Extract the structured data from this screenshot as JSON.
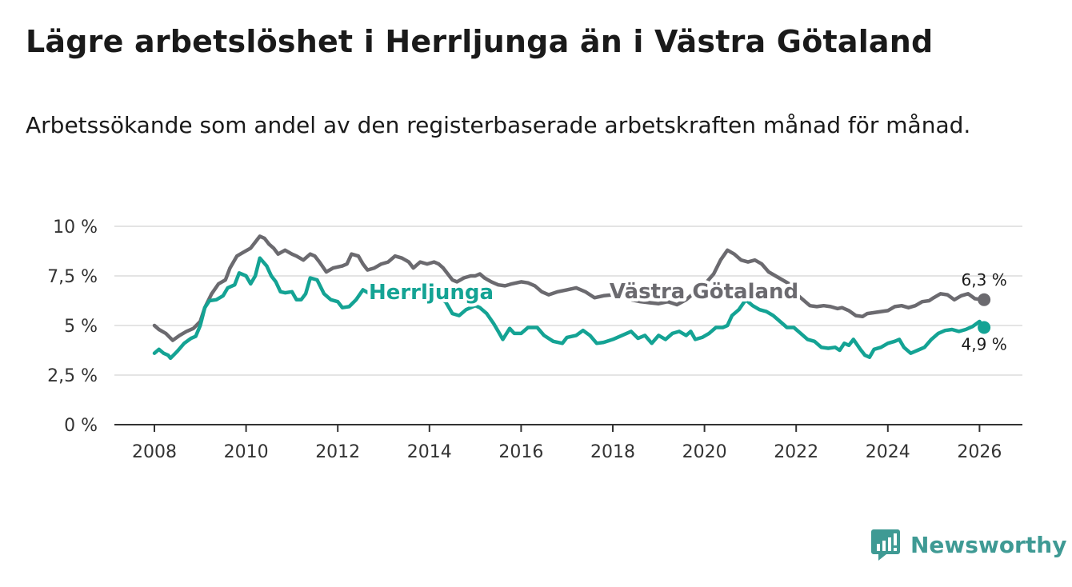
{
  "title": "Lägre arbetslöshet i Herrljunga än i Västra Götaland",
  "subtitle": "Arbetssökande som andel av den registerbaserade arbetskraften månad för månad.",
  "brand": {
    "name": "Newsworthy",
    "icon": "newsworthy-logo-icon",
    "color": "#3f9a94"
  },
  "chart_data": {
    "type": "line",
    "title": "Lägre arbetslöshet i Herrljunga än i Västra Götaland",
    "xlabel": "",
    "ylabel": "",
    "xlim": [
      2007.7,
      2027.0
    ],
    "ylim": [
      0,
      10
    ],
    "yticks": [
      0,
      2.5,
      5,
      7.5,
      10
    ],
    "ytick_labels": [
      "0 %",
      "2,5 %",
      "5 %",
      "7,5 %",
      "10 %"
    ],
    "xticks": [
      2008,
      2010,
      2012,
      2014,
      2016,
      2018,
      2020,
      2022,
      2024,
      2026
    ],
    "xtick_labels": [
      "2008",
      "2010",
      "2012",
      "2014",
      "2016",
      "2018",
      "2020",
      "2022",
      "2024",
      "2026"
    ],
    "grid": true,
    "series": [
      {
        "name": "Västra Götaland",
        "label": "Västra Götaland",
        "color": "#6b6a6f",
        "end_label": "6,3 %",
        "points": [
          [
            2008.0,
            5.0
          ],
          [
            2008.1,
            4.8
          ],
          [
            2008.25,
            4.6
          ],
          [
            2008.4,
            4.25
          ],
          [
            2008.55,
            4.5
          ],
          [
            2008.7,
            4.7
          ],
          [
            2008.85,
            4.85
          ],
          [
            2009.0,
            5.2
          ],
          [
            2009.1,
            5.9
          ],
          [
            2009.25,
            6.6
          ],
          [
            2009.4,
            7.1
          ],
          [
            2009.55,
            7.3
          ],
          [
            2009.65,
            7.9
          ],
          [
            2009.8,
            8.5
          ],
          [
            2009.95,
            8.7
          ],
          [
            2010.1,
            8.9
          ],
          [
            2010.2,
            9.2
          ],
          [
            2010.3,
            9.5
          ],
          [
            2010.4,
            9.4
          ],
          [
            2010.5,
            9.1
          ],
          [
            2010.6,
            8.9
          ],
          [
            2010.7,
            8.6
          ],
          [
            2010.85,
            8.8
          ],
          [
            2011.0,
            8.6
          ],
          [
            2011.1,
            8.5
          ],
          [
            2011.25,
            8.3
          ],
          [
            2011.4,
            8.6
          ],
          [
            2011.5,
            8.5
          ],
          [
            2011.6,
            8.2
          ],
          [
            2011.75,
            7.7
          ],
          [
            2011.9,
            7.9
          ],
          [
            2012.1,
            8.0
          ],
          [
            2012.2,
            8.1
          ],
          [
            2012.3,
            8.6
          ],
          [
            2012.45,
            8.5
          ],
          [
            2012.55,
            8.1
          ],
          [
            2012.65,
            7.8
          ],
          [
            2012.8,
            7.9
          ],
          [
            2012.95,
            8.1
          ],
          [
            2013.1,
            8.2
          ],
          [
            2013.25,
            8.5
          ],
          [
            2013.4,
            8.4
          ],
          [
            2013.55,
            8.2
          ],
          [
            2013.65,
            7.9
          ],
          [
            2013.8,
            8.2
          ],
          [
            2013.95,
            8.1
          ],
          [
            2014.1,
            8.2
          ],
          [
            2014.2,
            8.1
          ],
          [
            2014.3,
            7.9
          ],
          [
            2014.4,
            7.6
          ],
          [
            2014.5,
            7.3
          ],
          [
            2014.6,
            7.2
          ],
          [
            2014.75,
            7.4
          ],
          [
            2014.9,
            7.5
          ],
          [
            2015.0,
            7.5
          ],
          [
            2015.1,
            7.6
          ],
          [
            2015.2,
            7.4
          ],
          [
            2015.35,
            7.2
          ],
          [
            2015.5,
            7.05
          ],
          [
            2015.65,
            7.0
          ],
          [
            2015.8,
            7.1
          ],
          [
            2016.0,
            7.2
          ],
          [
            2016.15,
            7.15
          ],
          [
            2016.3,
            7.0
          ],
          [
            2016.45,
            6.7
          ],
          [
            2016.6,
            6.55
          ],
          [
            2016.8,
            6.7
          ],
          [
            2017.0,
            6.8
          ],
          [
            2017.2,
            6.9
          ],
          [
            2017.4,
            6.7
          ],
          [
            2017.6,
            6.4
          ],
          [
            2017.8,
            6.5
          ],
          [
            2018.0,
            6.55
          ],
          [
            2018.2,
            6.5
          ],
          [
            2018.4,
            6.3
          ],
          [
            2018.6,
            6.2
          ],
          [
            2018.8,
            6.15
          ],
          [
            2019.0,
            6.1
          ],
          [
            2019.2,
            6.2
          ],
          [
            2019.4,
            6.05
          ],
          [
            2019.6,
            6.3
          ],
          [
            2019.75,
            6.6
          ],
          [
            2019.9,
            6.8
          ],
          [
            2020.05,
            7.2
          ],
          [
            2020.2,
            7.6
          ],
          [
            2020.35,
            8.3
          ],
          [
            2020.5,
            8.8
          ],
          [
            2020.65,
            8.6
          ],
          [
            2020.8,
            8.3
          ],
          [
            2020.95,
            8.2
          ],
          [
            2021.1,
            8.3
          ],
          [
            2021.25,
            8.1
          ],
          [
            2021.4,
            7.7
          ],
          [
            2021.55,
            7.5
          ],
          [
            2021.7,
            7.3
          ],
          [
            2021.85,
            7.1
          ],
          [
            2022.0,
            6.6
          ],
          [
            2022.15,
            6.3
          ],
          [
            2022.3,
            6.0
          ],
          [
            2022.45,
            5.95
          ],
          [
            2022.6,
            6.0
          ],
          [
            2022.75,
            5.95
          ],
          [
            2022.9,
            5.85
          ],
          [
            2023.0,
            5.9
          ],
          [
            2023.15,
            5.75
          ],
          [
            2023.3,
            5.5
          ],
          [
            2023.45,
            5.45
          ],
          [
            2023.55,
            5.6
          ],
          [
            2023.7,
            5.65
          ],
          [
            2023.85,
            5.7
          ],
          [
            2024.0,
            5.75
          ],
          [
            2024.15,
            5.95
          ],
          [
            2024.3,
            6.0
          ],
          [
            2024.45,
            5.9
          ],
          [
            2024.6,
            6.0
          ],
          [
            2024.75,
            6.2
          ],
          [
            2024.9,
            6.25
          ],
          [
            2025.0,
            6.4
          ],
          [
            2025.15,
            6.6
          ],
          [
            2025.3,
            6.55
          ],
          [
            2025.45,
            6.3
          ],
          [
            2025.6,
            6.5
          ],
          [
            2025.75,
            6.6
          ],
          [
            2025.9,
            6.35
          ],
          [
            2026.1,
            6.3
          ]
        ]
      },
      {
        "name": "Herrljunga",
        "label": "Herrljunga",
        "color": "#14a394",
        "end_label": "4,9 %",
        "points": [
          [
            2008.0,
            3.6
          ],
          [
            2008.1,
            3.8
          ],
          [
            2008.2,
            3.6
          ],
          [
            2008.3,
            3.5
          ],
          [
            2008.35,
            3.35
          ],
          [
            2008.5,
            3.7
          ],
          [
            2008.65,
            4.1
          ],
          [
            2008.8,
            4.35
          ],
          [
            2008.9,
            4.45
          ],
          [
            2009.0,
            5.0
          ],
          [
            2009.1,
            5.9
          ],
          [
            2009.2,
            6.25
          ],
          [
            2009.35,
            6.3
          ],
          [
            2009.5,
            6.5
          ],
          [
            2009.6,
            6.9
          ],
          [
            2009.75,
            7.05
          ],
          [
            2009.85,
            7.65
          ],
          [
            2010.0,
            7.5
          ],
          [
            2010.1,
            7.1
          ],
          [
            2010.2,
            7.5
          ],
          [
            2010.3,
            8.4
          ],
          [
            2010.45,
            8.0
          ],
          [
            2010.55,
            7.5
          ],
          [
            2010.65,
            7.2
          ],
          [
            2010.75,
            6.7
          ],
          [
            2010.85,
            6.65
          ],
          [
            2011.0,
            6.7
          ],
          [
            2011.1,
            6.3
          ],
          [
            2011.2,
            6.3
          ],
          [
            2011.3,
            6.6
          ],
          [
            2011.4,
            7.4
          ],
          [
            2011.55,
            7.3
          ],
          [
            2011.7,
            6.6
          ],
          [
            2011.85,
            6.3
          ],
          [
            2012.0,
            6.2
          ],
          [
            2012.1,
            5.9
          ],
          [
            2012.25,
            5.95
          ],
          [
            2012.4,
            6.3
          ],
          [
            2012.55,
            6.8
          ],
          [
            2012.7,
            6.6
          ],
          [
            2012.85,
            6.35
          ],
          [
            2013.0,
            6.5
          ],
          [
            2013.15,
            6.8
          ],
          [
            2013.3,
            6.6
          ],
          [
            2013.45,
            6.6
          ],
          [
            2013.55,
            6.6
          ],
          [
            2013.8,
            6.7
          ],
          [
            2014.0,
            6.6
          ],
          [
            2014.2,
            6.4
          ],
          [
            2014.35,
            6.2
          ],
          [
            2014.5,
            5.6
          ],
          [
            2014.65,
            5.5
          ],
          [
            2014.8,
            5.8
          ],
          [
            2015.0,
            6.0
          ],
          [
            2015.1,
            5.9
          ],
          [
            2015.25,
            5.6
          ],
          [
            2015.4,
            5.1
          ],
          [
            2015.5,
            4.7
          ],
          [
            2015.6,
            4.3
          ],
          [
            2015.75,
            4.85
          ],
          [
            2015.85,
            4.6
          ],
          [
            2016.0,
            4.6
          ],
          [
            2016.15,
            4.9
          ],
          [
            2016.35,
            4.9
          ],
          [
            2016.5,
            4.5
          ],
          [
            2016.7,
            4.2
          ],
          [
            2016.9,
            4.1
          ],
          [
            2017.0,
            4.4
          ],
          [
            2017.2,
            4.5
          ],
          [
            2017.35,
            4.75
          ],
          [
            2017.5,
            4.5
          ],
          [
            2017.65,
            4.1
          ],
          [
            2017.8,
            4.15
          ],
          [
            2018.0,
            4.3
          ],
          [
            2018.2,
            4.5
          ],
          [
            2018.4,
            4.7
          ],
          [
            2018.55,
            4.35
          ],
          [
            2018.7,
            4.5
          ],
          [
            2018.85,
            4.1
          ],
          [
            2019.0,
            4.5
          ],
          [
            2019.15,
            4.3
          ],
          [
            2019.3,
            4.6
          ],
          [
            2019.45,
            4.7
          ],
          [
            2019.6,
            4.5
          ],
          [
            2019.7,
            4.7
          ],
          [
            2019.8,
            4.3
          ],
          [
            2019.95,
            4.4
          ],
          [
            2020.1,
            4.6
          ],
          [
            2020.25,
            4.9
          ],
          [
            2020.4,
            4.9
          ],
          [
            2020.5,
            5.0
          ],
          [
            2020.6,
            5.5
          ],
          [
            2020.75,
            5.8
          ],
          [
            2020.9,
            6.3
          ],
          [
            2021.05,
            6.0
          ],
          [
            2021.2,
            5.8
          ],
          [
            2021.35,
            5.7
          ],
          [
            2021.5,
            5.5
          ],
          [
            2021.65,
            5.2
          ],
          [
            2021.8,
            4.9
          ],
          [
            2021.95,
            4.9
          ],
          [
            2022.1,
            4.6
          ],
          [
            2022.25,
            4.3
          ],
          [
            2022.4,
            4.2
          ],
          [
            2022.55,
            3.9
          ],
          [
            2022.7,
            3.85
          ],
          [
            2022.85,
            3.9
          ],
          [
            2022.95,
            3.75
          ],
          [
            2023.05,
            4.1
          ],
          [
            2023.15,
            4.0
          ],
          [
            2023.25,
            4.3
          ],
          [
            2023.4,
            3.8
          ],
          [
            2023.5,
            3.5
          ],
          [
            2023.6,
            3.4
          ],
          [
            2023.7,
            3.8
          ],
          [
            2023.85,
            3.9
          ],
          [
            2024.0,
            4.1
          ],
          [
            2024.15,
            4.2
          ],
          [
            2024.25,
            4.3
          ],
          [
            2024.35,
            3.9
          ],
          [
            2024.5,
            3.6
          ],
          [
            2024.65,
            3.75
          ],
          [
            2024.8,
            3.9
          ],
          [
            2024.95,
            4.3
          ],
          [
            2025.1,
            4.6
          ],
          [
            2025.25,
            4.75
          ],
          [
            2025.4,
            4.8
          ],
          [
            2025.55,
            4.7
          ],
          [
            2025.7,
            4.8
          ],
          [
            2025.85,
            4.95
          ],
          [
            2026.0,
            5.2
          ],
          [
            2026.1,
            4.9
          ]
        ]
      }
    ]
  }
}
